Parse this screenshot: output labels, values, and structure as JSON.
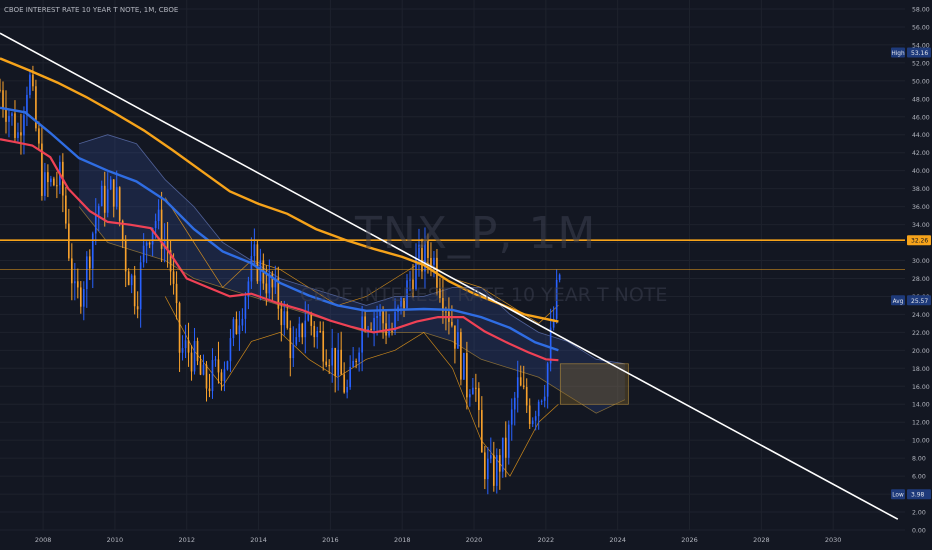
{
  "header": {
    "title": "CBOE INTEREST RATE 10 YEAR T NOTE, 1M, CBOE"
  },
  "watermark": {
    "symbol": "TNX_P, 1M",
    "name": "CBOE INTEREST RATE 10 YEAR T NOTE"
  },
  "colors": {
    "background": "#131722",
    "grid": "#1e222d",
    "up": "#2962ff",
    "down": "#f7a12c",
    "ma_fast": "#ef4155",
    "ma_mid": "#2f6de3",
    "ma_slow": "#f6a31a",
    "trendline": "#ffffff",
    "hline": "#f6a31a",
    "cloud_bull": "#3b5cb0",
    "cloud_bear": "#8a6a2a"
  },
  "chart_data": {
    "type": "candlestick",
    "title": "CBOE INTEREST RATE 10 YEAR T NOTE, 1M, CBOE",
    "x_ticks": [
      "2008",
      "2010",
      "2012",
      "2014",
      "2016",
      "2018",
      "2020",
      "2022",
      "2024",
      "2026",
      "2028",
      "2030"
    ],
    "y_ticks": [
      "0.00",
      "2.00",
      "4.00",
      "6.00",
      "8.00",
      "10.00",
      "12.00",
      "14.00",
      "16.00",
      "18.00",
      "20.00",
      "22.00",
      "24.00",
      "26.00",
      "28.00",
      "30.00",
      "32.00",
      "34.00",
      "36.00",
      "38.00",
      "40.00",
      "42.00",
      "44.00",
      "46.00",
      "48.00",
      "50.00",
      "52.00",
      "54.00",
      "56.00",
      "58.00"
    ],
    "ylim": [
      0,
      59
    ],
    "xlim": [
      2006.8,
      2032.0
    ],
    "price_labels": [
      {
        "label": "High",
        "value": "53.16",
        "y": 53.16,
        "bg": "#1e3a7a"
      },
      {
        "label": "",
        "value": "32.26",
        "y": 32.26,
        "bg": "#f6a31a"
      },
      {
        "label": "Avg",
        "value": "25.57",
        "y": 25.57,
        "bg": "#1e3a7a"
      },
      {
        "label": "Low",
        "value": "3.98",
        "y": 3.98,
        "bg": "#1e3a7a"
      }
    ],
    "hlines": [
      {
        "y": 32.26,
        "color": "#f6a31a",
        "width": 1.6
      },
      {
        "y": 29.0,
        "color": "#f6a31a",
        "width": 0.6
      }
    ],
    "trendline": {
      "x": [
        2006.8,
        2031.8
      ],
      "y": [
        55.3,
        1.2
      ]
    },
    "anchors": [
      [
        2006.8,
        49
      ],
      [
        2007.3,
        44
      ],
      [
        2007.6,
        51
      ],
      [
        2008.0,
        38
      ],
      [
        2008.5,
        39
      ],
      [
        2008.9,
        25
      ],
      [
        2009.2,
        29
      ],
      [
        2009.5,
        36
      ],
      [
        2010.0,
        38
      ],
      [
        2010.3,
        30
      ],
      [
        2010.6,
        26
      ],
      [
        2010.9,
        33
      ],
      [
        2011.1,
        35
      ],
      [
        2011.5,
        31
      ],
      [
        2011.8,
        20
      ],
      [
        2012.1,
        20
      ],
      [
        2012.5,
        16
      ],
      [
        2012.9,
        18
      ],
      [
        2013.2,
        20
      ],
      [
        2013.5,
        25
      ],
      [
        2013.9,
        30
      ],
      [
        2014.2,
        28
      ],
      [
        2014.6,
        25
      ],
      [
        2015.0,
        19
      ],
      [
        2015.3,
        24
      ],
      [
        2015.6,
        22
      ],
      [
        2016.0,
        20
      ],
      [
        2016.5,
        15
      ],
      [
        2016.9,
        24
      ],
      [
        2017.3,
        24
      ],
      [
        2017.7,
        22
      ],
      [
        2018.0,
        25
      ],
      [
        2018.3,
        29
      ],
      [
        2018.8,
        31
      ],
      [
        2019.1,
        27
      ],
      [
        2019.4,
        23
      ],
      [
        2019.8,
        16
      ],
      [
        2020.0,
        18
      ],
      [
        2020.2,
        8
      ],
      [
        2020.5,
        6
      ],
      [
        2020.9,
        9
      ],
      [
        2021.2,
        16
      ],
      [
        2021.6,
        13
      ],
      [
        2022.0,
        17
      ],
      [
        2022.2,
        23
      ],
      [
        2022.4,
        29
      ]
    ],
    "ma_fast": [
      [
        2006.8,
        43.5
      ],
      [
        2007.2,
        43.2
      ],
      [
        2007.7,
        42.8
      ],
      [
        2008.2,
        41.5
      ],
      [
        2008.7,
        38
      ],
      [
        2009.3,
        35.5
      ],
      [
        2009.8,
        34.3
      ],
      [
        2010.4,
        34
      ],
      [
        2011.0,
        33.6
      ],
      [
        2011.5,
        31
      ],
      [
        2012.0,
        28
      ],
      [
        2012.6,
        27
      ],
      [
        2013.2,
        26
      ],
      [
        2013.8,
        26.3
      ],
      [
        2014.5,
        25.3
      ],
      [
        2015.2,
        24.5
      ],
      [
        2016.0,
        23.3
      ],
      [
        2016.6,
        22.6
      ],
      [
        2017.2,
        22
      ],
      [
        2017.8,
        22.4
      ],
      [
        2018.4,
        23.2
      ],
      [
        2019.0,
        23.7
      ],
      [
        2019.7,
        23.7
      ],
      [
        2020.3,
        22.1
      ],
      [
        2020.9,
        20.9
      ],
      [
        2021.5,
        19.8
      ],
      [
        2022.0,
        19.0
      ],
      [
        2022.35,
        18.9
      ]
    ],
    "ma_mid": [
      [
        2006.8,
        47
      ],
      [
        2007.5,
        46.5
      ],
      [
        2008.2,
        44.2
      ],
      [
        2009.0,
        41.4
      ],
      [
        2009.8,
        40
      ],
      [
        2010.6,
        38.8
      ],
      [
        2011.4,
        36.7
      ],
      [
        2012.2,
        33.5
      ],
      [
        2013.0,
        31
      ],
      [
        2013.8,
        29.7
      ],
      [
        2014.6,
        27.5
      ],
      [
        2015.4,
        26.1
      ],
      [
        2016.2,
        25
      ],
      [
        2017.0,
        24.4
      ],
      [
        2017.8,
        24.5
      ],
      [
        2018.6,
        24.6
      ],
      [
        2019.4,
        24.5
      ],
      [
        2020.2,
        23.7
      ],
      [
        2021.0,
        22.5
      ],
      [
        2021.7,
        20.9
      ],
      [
        2022.35,
        20.0
      ]
    ],
    "ma_slow": [
      [
        2006.8,
        52.5
      ],
      [
        2007.6,
        51.2
      ],
      [
        2008.4,
        49.8
      ],
      [
        2009.2,
        48.2
      ],
      [
        2010.0,
        46.4
      ],
      [
        2010.8,
        44.5
      ],
      [
        2011.6,
        42.3
      ],
      [
        2012.4,
        40
      ],
      [
        2013.2,
        37.7
      ],
      [
        2014.0,
        36.3
      ],
      [
        2014.8,
        35.2
      ],
      [
        2015.6,
        33.5
      ],
      [
        2016.4,
        32.3
      ],
      [
        2017.2,
        31.3
      ],
      [
        2018.0,
        30.4
      ],
      [
        2018.6,
        29.5
      ],
      [
        2019.3,
        27.7
      ],
      [
        2020.0,
        26.3
      ],
      [
        2020.7,
        25.2
      ],
      [
        2021.4,
        24.0
      ],
      [
        2022.0,
        23.5
      ],
      [
        2022.35,
        23.2
      ]
    ],
    "cloud_upper": [
      [
        2009.0,
        43
      ],
      [
        2009.8,
        44
      ],
      [
        2010.6,
        43
      ],
      [
        2011.4,
        39
      ],
      [
        2012.2,
        36
      ],
      [
        2013.0,
        32
      ],
      [
        2013.8,
        30
      ],
      [
        2014.6,
        28
      ],
      [
        2015.4,
        27
      ],
      [
        2016.2,
        26
      ],
      [
        2017.0,
        25
      ],
      [
        2017.8,
        26
      ],
      [
        2018.6,
        26
      ],
      [
        2019.4,
        27
      ],
      [
        2020.2,
        27
      ],
      [
        2021.0,
        24
      ],
      [
        2021.8,
        22
      ],
      [
        2022.6,
        21
      ],
      [
        2023.4,
        19
      ],
      [
        2024.2,
        18.5
      ]
    ],
    "cloud_lower": [
      [
        2009.0,
        36
      ],
      [
        2009.8,
        32
      ],
      [
        2010.6,
        31
      ],
      [
        2011.4,
        30
      ],
      [
        2012.2,
        28
      ],
      [
        2013.0,
        27
      ],
      [
        2013.8,
        26
      ],
      [
        2014.6,
        25
      ],
      [
        2015.4,
        24
      ],
      [
        2016.2,
        23
      ],
      [
        2017.0,
        22
      ],
      [
        2017.8,
        22
      ],
      [
        2018.6,
        22
      ],
      [
        2019.4,
        21
      ],
      [
        2020.2,
        19
      ],
      [
        2021.0,
        18
      ],
      [
        2021.8,
        17
      ],
      [
        2022.6,
        15
      ],
      [
        2023.4,
        13
      ],
      [
        2024.2,
        14.5
      ]
    ],
    "bb_upper": [
      [
        2011.4,
        37
      ],
      [
        2012.2,
        32
      ],
      [
        2013.0,
        27
      ],
      [
        2013.8,
        30
      ],
      [
        2014.6,
        29
      ],
      [
        2015.4,
        27
      ],
      [
        2016.2,
        25
      ],
      [
        2017.0,
        26
      ],
      [
        2017.8,
        28
      ],
      [
        2018.6,
        30
      ],
      [
        2019.4,
        28
      ],
      [
        2020.2,
        27
      ],
      [
        2021.0,
        25
      ],
      [
        2021.8,
        23
      ],
      [
        2022.35,
        25
      ]
    ],
    "bb_lower": [
      [
        2011.4,
        26
      ],
      [
        2012.2,
        20
      ],
      [
        2013.0,
        16
      ],
      [
        2013.8,
        21
      ],
      [
        2014.6,
        22
      ],
      [
        2015.4,
        19
      ],
      [
        2016.2,
        17
      ],
      [
        2017.0,
        19
      ],
      [
        2017.8,
        20
      ],
      [
        2018.6,
        22
      ],
      [
        2019.4,
        18
      ],
      [
        2020.2,
        10
      ],
      [
        2021.0,
        6
      ],
      [
        2021.8,
        12
      ],
      [
        2022.35,
        14
      ]
    ]
  }
}
